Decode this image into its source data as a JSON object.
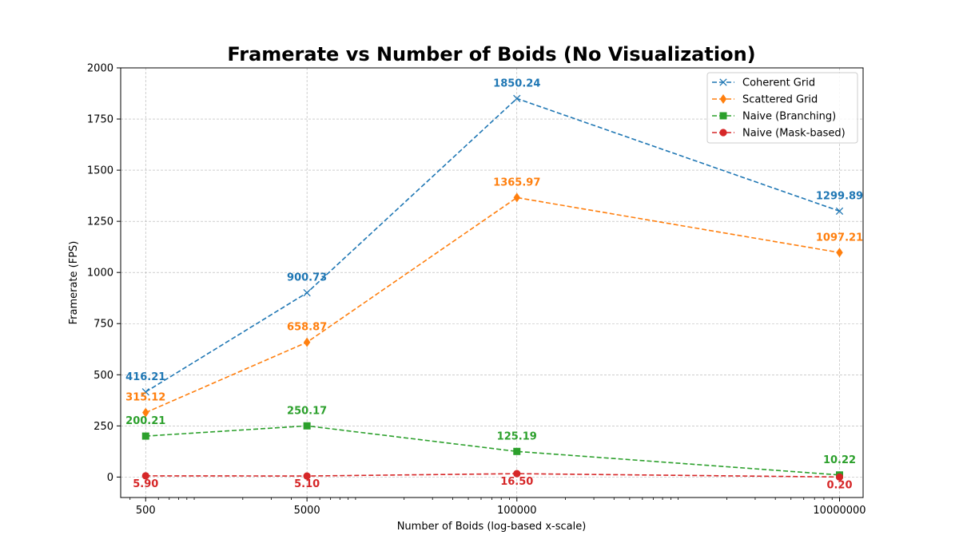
{
  "chart_data": {
    "type": "line",
    "title": "Framerate vs Number of Boids (No Visualization)",
    "xlabel": "Number of Boids (log-based x-scale)",
    "ylabel": "Framerate (FPS)",
    "x_scale": "log",
    "x": [
      500,
      5000,
      100000,
      10000000
    ],
    "x_tick_labels": [
      "500",
      "5000",
      "100000",
      "10000000"
    ],
    "xlim": [
      350,
      14000000
    ],
    "ylim": [
      -100,
      2000
    ],
    "y_ticks": [
      0,
      250,
      500,
      750,
      1000,
      1250,
      1500,
      1750,
      2000
    ],
    "grid": true,
    "legend_position": "top-right",
    "series": [
      {
        "name": "Coherent Grid",
        "color": "#1f77b4",
        "marker": "x",
        "values": [
          416.21,
          900.73,
          1850.24,
          1299.89
        ],
        "labels": [
          "416.21",
          "900.73",
          "1850.24",
          "1299.89"
        ]
      },
      {
        "name": "Scattered Grid",
        "color": "#ff7f0e",
        "marker": "diamond",
        "values": [
          315.12,
          658.87,
          1365.97,
          1097.21
        ],
        "labels": [
          "315.12",
          "658.87",
          "1365.97",
          "1097.21"
        ]
      },
      {
        "name": "Naive (Branching)",
        "color": "#2ca02c",
        "marker": "square",
        "values": [
          200.21,
          250.17,
          125.19,
          10.22
        ],
        "labels": [
          "200.21",
          "250.17",
          "125.19",
          "10.22"
        ]
      },
      {
        "name": "Naive (Mask-based)",
        "color": "#d62728",
        "marker": "circle",
        "values": [
          5.9,
          5.1,
          16.5,
          0.2
        ],
        "labels": [
          "5.90",
          "5.10",
          "16.50",
          "0.20"
        ]
      }
    ]
  }
}
